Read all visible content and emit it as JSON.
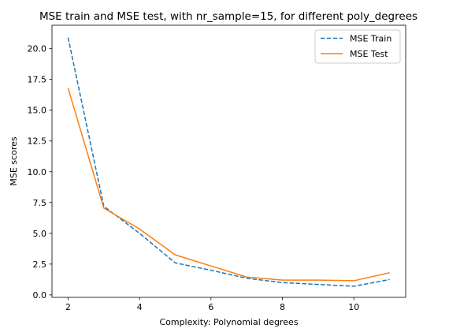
{
  "chart_data": {
    "type": "line",
    "title": "MSE train and MSE test, with nr_sample=15, for different poly_degrees",
    "xlabel": "Complexity: Polynomial degrees",
    "ylabel": "MSE scores",
    "xlim": [
      1.55,
      11.45
    ],
    "ylim": [
      -0.2,
      21.9
    ],
    "xticks": [
      2,
      4,
      6,
      8,
      10
    ],
    "xtick_labels": [
      "2",
      "4",
      "6",
      "8",
      "10"
    ],
    "yticks": [
      0.0,
      2.5,
      5.0,
      7.5,
      10.0,
      12.5,
      15.0,
      17.5,
      20.0
    ],
    "ytick_labels": [
      "0.0",
      "2.5",
      "5.0",
      "7.5",
      "10.0",
      "12.5",
      "15.0",
      "17.5",
      "20.0"
    ],
    "grid": false,
    "legend_position": "top-right",
    "x": [
      2,
      3,
      4,
      5,
      6,
      7,
      8,
      9,
      10,
      11
    ],
    "series": [
      {
        "name": "MSE Train",
        "color": "#1f77b4",
        "linestyle": "dashed",
        "values": [
          20.9,
          7.2,
          5.0,
          2.6,
          2.0,
          1.35,
          1.0,
          0.85,
          0.7,
          1.25
        ]
      },
      {
        "name": "MSE Test",
        "color": "#ff7f0e",
        "linestyle": "solid",
        "values": [
          16.8,
          7.05,
          5.35,
          3.25,
          2.35,
          1.45,
          1.2,
          1.2,
          1.15,
          1.8
        ]
      }
    ]
  }
}
